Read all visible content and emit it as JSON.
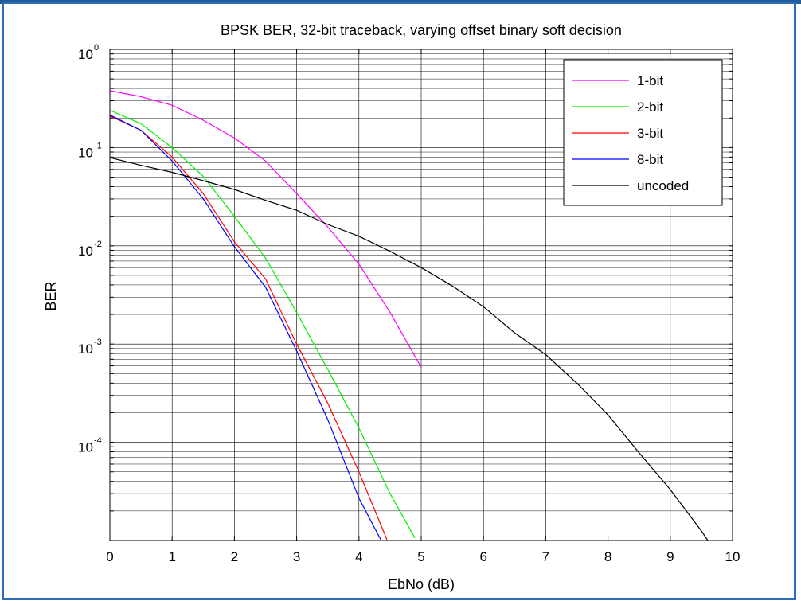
{
  "chart_data": {
    "type": "line",
    "title": "BPSK BER, 32-bit traceback, varying offset binary soft decision",
    "xlabel": "EbNo (dB)",
    "ylabel": "BER",
    "xscale": "linear",
    "yscale": "log",
    "xlim": [
      0,
      10
    ],
    "ylim": [
      1e-05,
      1
    ],
    "grid": true,
    "legend_position": "top-right",
    "x_ticks": [
      "0",
      "1",
      "2",
      "3",
      "4",
      "5",
      "6",
      "7",
      "8",
      "9",
      "10"
    ],
    "y_ticks": [
      {
        "base": "10",
        "exp": "0",
        "value": 1
      },
      {
        "base": "10",
        "exp": "-1",
        "value": 0.1
      },
      {
        "base": "10",
        "exp": "-2",
        "value": 0.01
      },
      {
        "base": "10",
        "exp": "-3",
        "value": 0.001
      },
      {
        "base": "10",
        "exp": "-4",
        "value": 0.0001
      }
    ],
    "series": [
      {
        "name": "1-bit",
        "color": "#ff00ff",
        "x": [
          0,
          0.5,
          1,
          1.5,
          2,
          2.5,
          3,
          3.5,
          4,
          4.5,
          5
        ],
        "y": [
          0.38,
          0.33,
          0.27,
          0.19,
          0.125,
          0.073,
          0.034,
          0.0155,
          0.0065,
          0.0021,
          0.00058
        ]
      },
      {
        "name": "2-bit",
        "color": "#00ee00",
        "x": [
          0,
          0.5,
          1,
          1.5,
          2,
          2.5,
          3,
          3.5,
          4,
          4.5,
          4.9
        ],
        "y": [
          0.24,
          0.175,
          0.1,
          0.051,
          0.02,
          0.0075,
          0.0021,
          0.00055,
          0.00014,
          3e-05,
          1.06e-05
        ]
      },
      {
        "name": "3-bit",
        "color": "#ff0000",
        "x": [
          0,
          0.5,
          1,
          1.5,
          2,
          2.5,
          3,
          3.5,
          4,
          4.45
        ],
        "y": [
          0.21,
          0.15,
          0.08,
          0.034,
          0.011,
          0.0046,
          0.001,
          0.00025,
          5e-05,
          1.02e-05
        ]
      },
      {
        "name": "8-bit",
        "color": "#0000ff",
        "x": [
          0,
          0.5,
          1,
          1.5,
          2,
          2.5,
          3,
          3.5,
          4,
          4.35
        ],
        "y": [
          0.215,
          0.15,
          0.073,
          0.03,
          0.0098,
          0.0038,
          0.00085,
          0.00017,
          2.7e-05,
          1.02e-05
        ]
      },
      {
        "name": "uncoded",
        "color": "#000000",
        "x": [
          0,
          0.5,
          1,
          1.5,
          2,
          2.5,
          3,
          3.5,
          4,
          4.5,
          5,
          5.5,
          6,
          6.5,
          7,
          7.5,
          8,
          8.5,
          9,
          9.5,
          9.6
        ],
        "y": [
          0.079,
          0.066,
          0.056,
          0.046,
          0.0375,
          0.029,
          0.023,
          0.0165,
          0.0125,
          0.0088,
          0.006,
          0.0039,
          0.0024,
          0.0013,
          0.00078,
          0.0004,
          0.00019,
          7.8e-05,
          3.3e-05,
          1.25e-05,
          1.01e-05
        ]
      }
    ]
  }
}
